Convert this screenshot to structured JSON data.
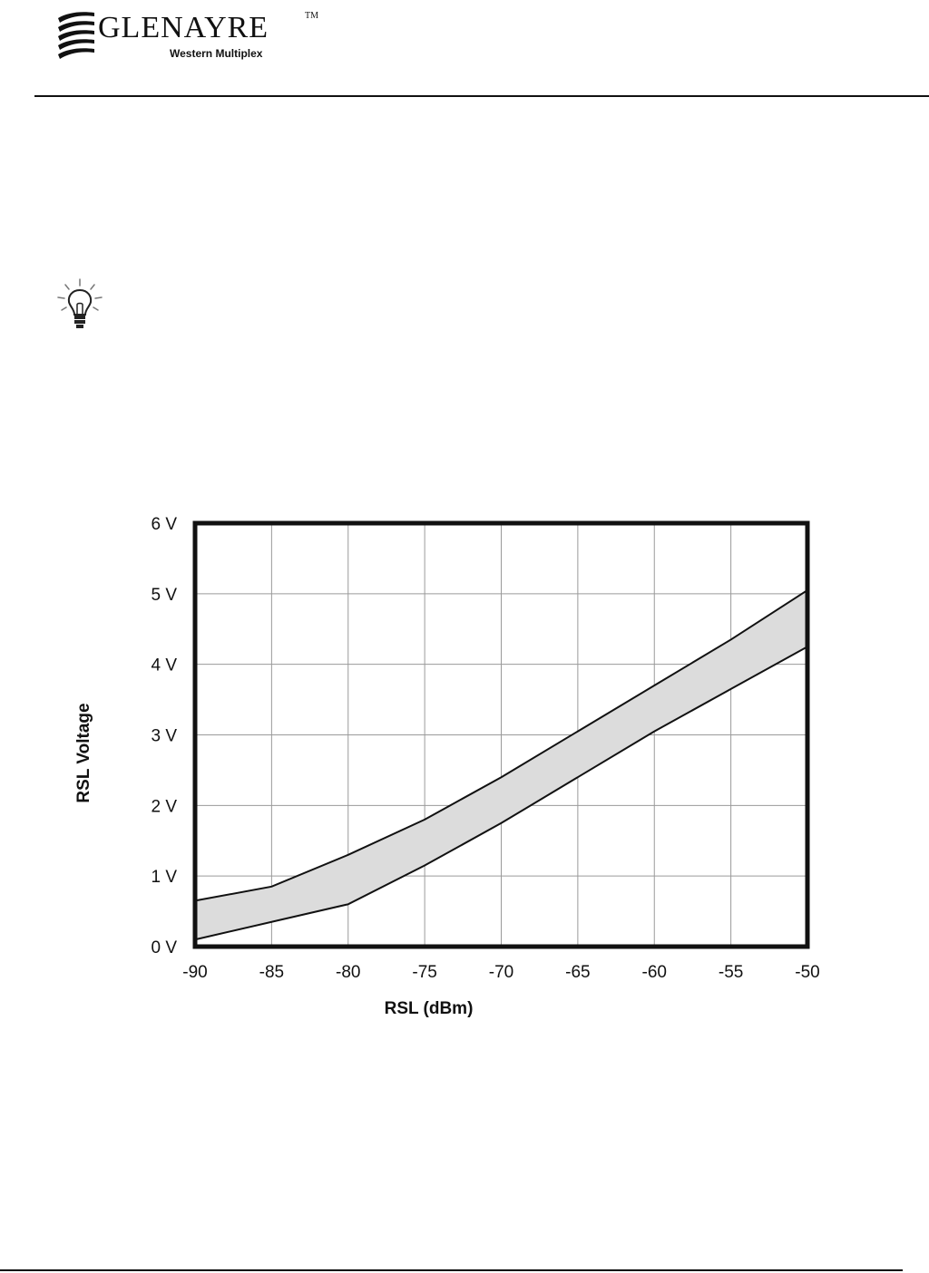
{
  "header": {
    "brand_name": "GLENAYRE",
    "trademark": "TM",
    "subtitle": "Western Multiplex"
  },
  "icons": {
    "logo": "glenayre-swoosh-logo",
    "tip": "lightbulb-icon"
  },
  "chart_data": {
    "type": "area",
    "title": "",
    "xlabel": "RSL  (dBm)",
    "ylabel": "RSL Voltage",
    "xlim": [
      -90,
      -50
    ],
    "ylim": [
      0,
      6
    ],
    "x_ticks": [
      -90,
      -85,
      -80,
      -75,
      -70,
      -65,
      -60,
      -55,
      -50
    ],
    "x_tick_labels": [
      "-90",
      "-85",
      "-80",
      "-75",
      "-70",
      "-65",
      "-60",
      "-55",
      "-50"
    ],
    "y_ticks": [
      0,
      1,
      2,
      3,
      4,
      5,
      6
    ],
    "y_tick_labels": [
      "0 V",
      "1 V",
      "2 V",
      "3 V",
      "4 V",
      "5 V",
      "6 V"
    ],
    "grid": true,
    "legend": "none",
    "series": [
      {
        "role": "upper",
        "x": [
          -90,
          -85,
          -80,
          -75,
          -70,
          -65,
          -60,
          -55,
          -50
        ],
        "values": [
          0.65,
          0.85,
          1.3,
          1.8,
          2.4,
          3.05,
          3.7,
          4.35,
          5.05
        ]
      },
      {
        "role": "lower",
        "x": [
          -90,
          -85,
          -80,
          -75,
          -70,
          -65,
          -60,
          -55,
          -50
        ],
        "values": [
          0.1,
          0.35,
          0.6,
          1.15,
          1.75,
          2.4,
          3.05,
          3.65,
          4.25
        ]
      }
    ],
    "band_color": "#dcdcdc",
    "line_color": "#111111"
  }
}
